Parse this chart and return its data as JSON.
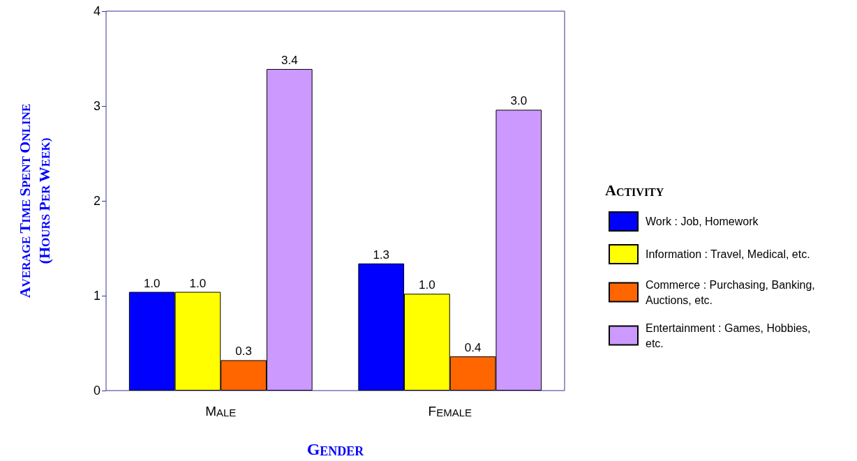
{
  "chart_data": {
    "type": "bar",
    "xlabel": "GENDER",
    "ylabel": "AVERAGE TIME SPENT ONLINE (HOURS PER WEEK)",
    "legend_title": "ACTIVITY",
    "categories": [
      "MALE",
      "FEMALE"
    ],
    "series": [
      {
        "name": "Work : Job, Homework",
        "color": "#0000ff",
        "values": [
          1.04,
          1.34
        ],
        "value_labels": [
          "1.0",
          "1.3"
        ]
      },
      {
        "name": "Information : Travel, Medical, etc.",
        "color": "#ffff00",
        "values": [
          1.04,
          1.02
        ],
        "value_labels": [
          "1.0",
          "1.0"
        ]
      },
      {
        "name": "Commerce : Purchasing, Banking, Auctions, etc.",
        "color": "#ff6600",
        "values": [
          0.32,
          0.36
        ],
        "value_labels": [
          "0.3",
          "0.4"
        ]
      },
      {
        "name": "Entertainment : Games, Hobbies, etc.",
        "color": "#cc99ff",
        "values": [
          3.39,
          2.96
        ],
        "value_labels": [
          "3.4",
          "3.0"
        ]
      }
    ],
    "ylim": [
      0,
      4
    ],
    "yticks": [
      0,
      1,
      2,
      3,
      4
    ],
    "grid": false,
    "legend": "right"
  }
}
